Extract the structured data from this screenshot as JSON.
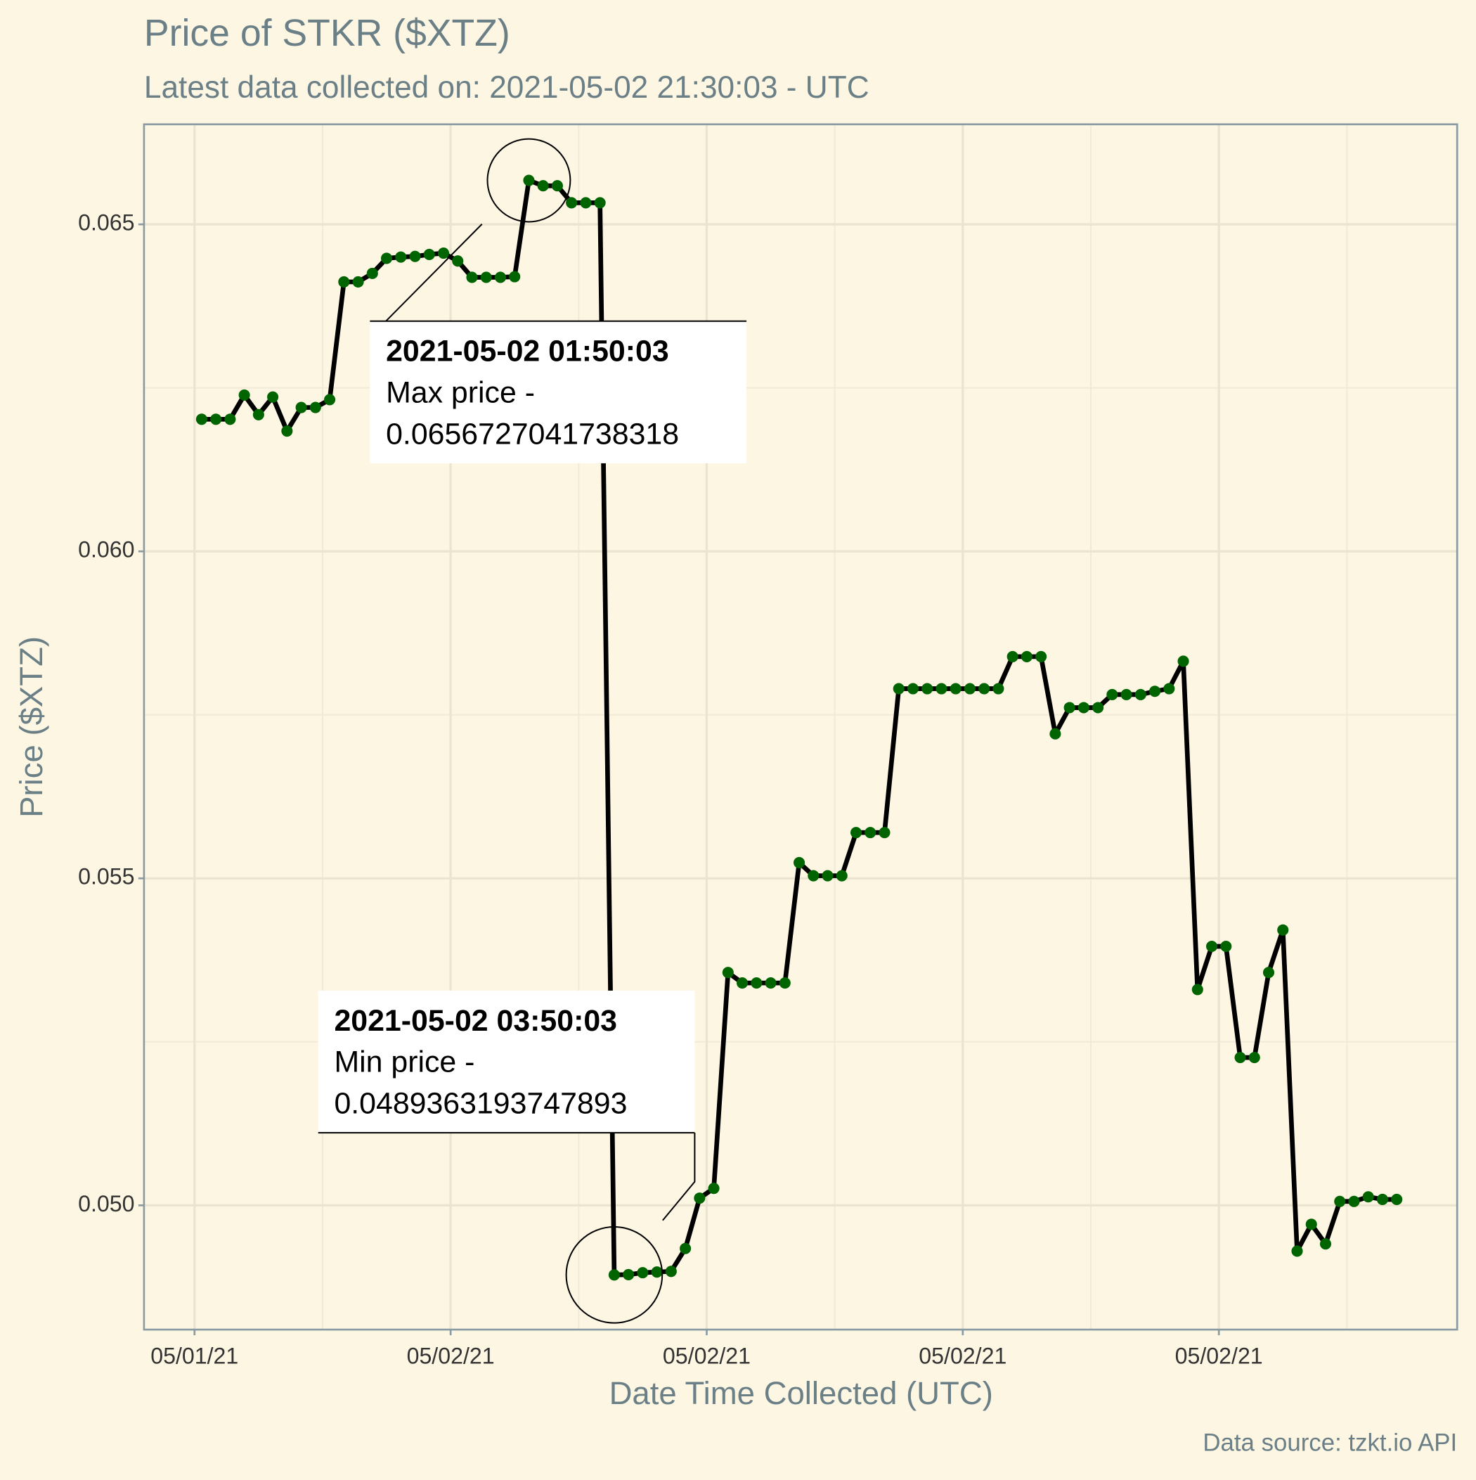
{
  "chart_data": {
    "type": "line",
    "title": "Price of STKR ($XTZ)",
    "subtitle": "Latest data collected on: 2021-05-02 21:30:03  - UTC",
    "x_label": "Date Time Collected (UTC)",
    "y_label": "Price ($XTZ)",
    "caption": "Data source: tzkt.io API",
    "grid": true,
    "xlim": [
      "2021-05-01 16:49",
      "2021-05-02 23:35"
    ],
    "xticks": [
      {
        "value": "2021-05-01 18:00",
        "label": "05/01/21"
      },
      {
        "value": "2021-05-02 00:00",
        "label": "05/02/21"
      },
      {
        "value": "2021-05-02 06:00",
        "label": "05/02/21"
      },
      {
        "value": "2021-05-02 12:00",
        "label": "05/02/21"
      },
      {
        "value": "2021-05-02 18:00",
        "label": "05/02/21"
      }
    ],
    "ylim": [
      0.0481,
      0.06653
    ],
    "yticks": [
      {
        "value": 0.05,
        "label": "0.050"
      },
      {
        "value": 0.055,
        "label": "0.055"
      },
      {
        "value": 0.06,
        "label": "0.060"
      },
      {
        "value": 0.065,
        "label": "0.065"
      }
    ],
    "x": [
      "2021-05-01 18:10",
      "2021-05-01 18:30",
      "2021-05-01 18:50",
      "2021-05-01 19:10",
      "2021-05-01 19:30",
      "2021-05-01 19:50",
      "2021-05-01 20:10",
      "2021-05-01 20:30",
      "2021-05-01 20:50",
      "2021-05-01 21:10",
      "2021-05-01 21:30",
      "2021-05-01 21:50",
      "2021-05-01 22:10",
      "2021-05-01 22:30",
      "2021-05-01 22:50",
      "2021-05-01 23:10",
      "2021-05-01 23:30",
      "2021-05-01 23:50",
      "2021-05-02 00:10",
      "2021-05-02 00:30",
      "2021-05-02 00:50",
      "2021-05-02 01:10",
      "2021-05-02 01:30",
      "2021-05-02 01:50",
      "2021-05-02 02:10",
      "2021-05-02 02:30",
      "2021-05-02 02:50",
      "2021-05-02 03:10",
      "2021-05-02 03:30",
      "2021-05-02 03:50",
      "2021-05-02 04:10",
      "2021-05-02 04:30",
      "2021-05-02 04:50",
      "2021-05-02 05:10",
      "2021-05-02 05:30",
      "2021-05-02 05:50",
      "2021-05-02 06:10",
      "2021-05-02 06:30",
      "2021-05-02 06:50",
      "2021-05-02 07:10",
      "2021-05-02 07:30",
      "2021-05-02 07:50",
      "2021-05-02 08:10",
      "2021-05-02 08:30",
      "2021-05-02 08:50",
      "2021-05-02 09:10",
      "2021-05-02 09:30",
      "2021-05-02 09:50",
      "2021-05-02 10:10",
      "2021-05-02 10:30",
      "2021-05-02 10:50",
      "2021-05-02 11:10",
      "2021-05-02 11:30",
      "2021-05-02 11:50",
      "2021-05-02 12:10",
      "2021-05-02 12:30",
      "2021-05-02 12:50",
      "2021-05-02 13:10",
      "2021-05-02 13:30",
      "2021-05-02 13:50",
      "2021-05-02 14:10",
      "2021-05-02 14:30",
      "2021-05-02 14:50",
      "2021-05-02 15:10",
      "2021-05-02 15:30",
      "2021-05-02 15:50",
      "2021-05-02 16:10",
      "2021-05-02 16:30",
      "2021-05-02 16:50",
      "2021-05-02 17:10",
      "2021-05-02 17:30",
      "2021-05-02 17:50",
      "2021-05-02 18:10",
      "2021-05-02 18:30",
      "2021-05-02 18:50",
      "2021-05-02 19:10",
      "2021-05-02 19:30",
      "2021-05-02 19:50",
      "2021-05-02 20:10",
      "2021-05-02 20:30",
      "2021-05-02 20:50",
      "2021-05-02 21:10",
      "2021-05-02 21:30",
      "2021-05-02 21:50",
      "2021-05-02 22:10"
    ],
    "series": [
      {
        "name": "Price",
        "color": "#006400",
        "line_color": "#000000",
        "values": [
          0.06202,
          0.06202,
          0.06202,
          0.06239,
          0.06209,
          0.06236,
          0.06184,
          0.0622,
          0.0622,
          0.06232,
          0.06412,
          0.06412,
          0.06425,
          0.06448,
          0.0645,
          0.06451,
          0.06454,
          0.06456,
          0.06444,
          0.06419,
          0.06419,
          0.06419,
          0.0642,
          0.0656727041738318,
          0.06559,
          0.06559,
          0.06533,
          0.06533,
          0.06533,
          0.0489363193747893,
          0.04894,
          0.04897,
          0.04898,
          0.04899,
          0.04934,
          0.05011,
          0.05026,
          0.05356,
          0.0534,
          0.0534,
          0.0534,
          0.0534,
          0.05524,
          0.05504,
          0.05504,
          0.05504,
          0.0557,
          0.0557,
          0.0557,
          0.0579,
          0.0579,
          0.0579,
          0.0579,
          0.0579,
          0.0579,
          0.0579,
          0.0579,
          0.05839,
          0.05839,
          0.05839,
          0.05721,
          0.05761,
          0.05761,
          0.05761,
          0.05781,
          0.05781,
          0.05781,
          0.05786,
          0.0579,
          0.05832,
          0.0533,
          0.05396,
          0.05396,
          0.05226,
          0.05226,
          0.05356,
          0.05421,
          0.0493,
          0.04971,
          0.04941,
          0.05006,
          0.05006,
          0.05013,
          0.05009,
          0.05009
        ]
      }
    ],
    "annotations": [
      {
        "time": "2021-05-02 01:50:03",
        "label": "Max price -",
        "value": 0.0656727041738318
      },
      {
        "time": "2021-05-02 03:50:03",
        "label": "Min price -",
        "value": 0.0489363193747893
      }
    ]
  }
}
